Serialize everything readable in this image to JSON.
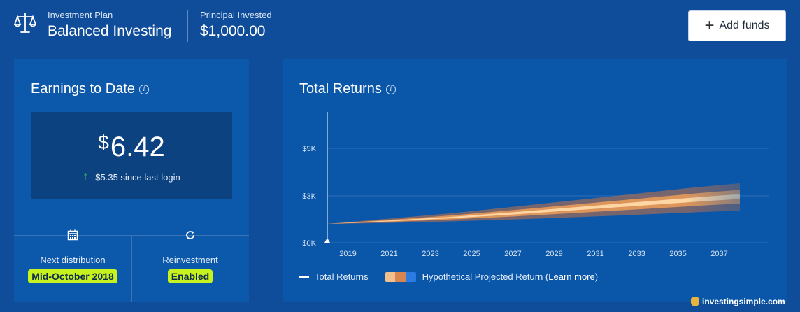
{
  "header": {
    "plan_label": "Investment Plan",
    "plan_name": "Balanced Investing",
    "principal_label": "Principal Invested",
    "principal_value": "$1,000.00",
    "add_funds_label": "Add funds",
    "add_funds_icon": "plus-icon",
    "plan_icon": "scale-icon"
  },
  "earnings": {
    "title": "Earnings to Date",
    "currency_symbol": "$",
    "amount": "6.42",
    "change_text": "$5.35 since last login",
    "change_icon": "arrow-up-icon",
    "next_distribution_label": "Next distribution",
    "next_distribution_value": "Mid-October 2018",
    "next_distribution_icon": "calendar-icon",
    "reinvestment_label": "Reinvestment",
    "reinvestment_value": "Enabled",
    "reinvestment_icon": "refresh-icon"
  },
  "returns": {
    "title": "Total Returns",
    "legend_total": "Total Returns",
    "legend_projected_prefix": "Hypothetical Projected Return (",
    "legend_learn_more": "Learn more",
    "legend_projected_suffix": ")"
  },
  "chart_data": {
    "type": "area",
    "title": "Total Returns",
    "y_ticks": [
      "$0K",
      "$3K",
      "$5K"
    ],
    "x_ticks": [
      "2019",
      "2021",
      "2023",
      "2025",
      "2027",
      "2029",
      "2031",
      "2033",
      "2035",
      "2037"
    ],
    "series": [
      {
        "name": "Total Returns",
        "x": [
          2018
        ],
        "y": [
          1000
        ]
      }
    ],
    "projection_band": {
      "name": "Hypothetical Projected Return",
      "x": [
        2018,
        2021,
        2024,
        2027,
        2030,
        2033,
        2036,
        2038
      ],
      "low": [
        1000,
        1050,
        1130,
        1230,
        1350,
        1480,
        1620,
        1700
      ],
      "mid": [
        1000,
        1150,
        1330,
        1550,
        1800,
        2050,
        2300,
        2450
      ],
      "high": [
        1000,
        1280,
        1560,
        1900,
        2250,
        2600,
        2950,
        3150
      ]
    },
    "colors": {
      "band_outer": "#9c6a5a",
      "band_mid": "#e89a5a",
      "band_inner": "#ffd9a8",
      "grid": "#2f6cb6"
    },
    "grid": true
  },
  "watermark": {
    "text": "investingsimple.com"
  }
}
